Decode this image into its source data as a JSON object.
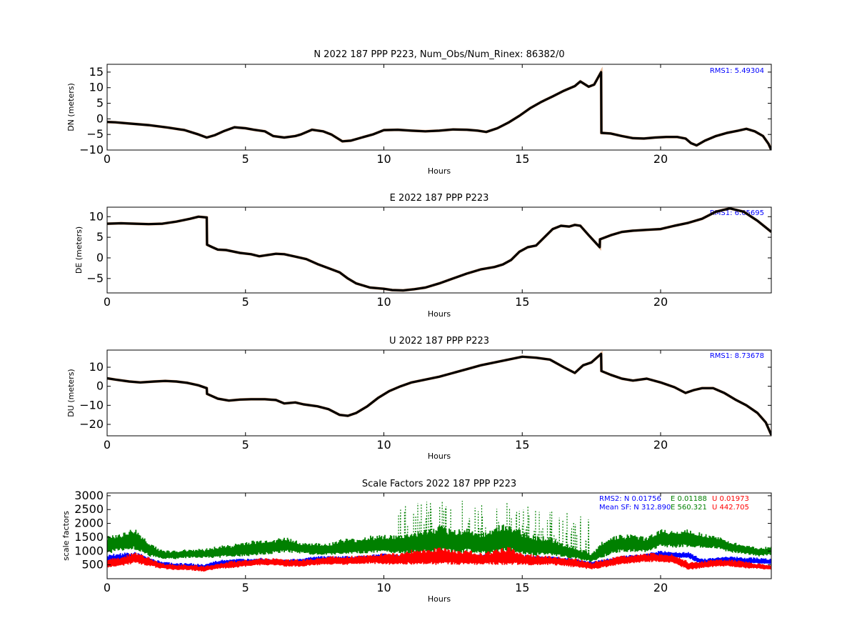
{
  "chart_data": [
    {
      "type": "line",
      "title": "N 2022 187 PPP  P223, Num_Obs/Num_Rinex: 86382/0",
      "xlabel": "Hours",
      "ylabel": "DN (meters)",
      "xlim": [
        0,
        24
      ],
      "ylim": [
        -10,
        17.5
      ],
      "xticks": [
        0,
        5,
        10,
        15,
        20
      ],
      "yticks": [
        -10,
        -5,
        0,
        5,
        10,
        15
      ],
      "annotation": "RMS1:  5.49304",
      "annotation_color": "#0000ff",
      "series": [
        {
          "color": "#000000",
          "x": [
            0,
            0.3,
            0.8,
            1.5,
            2.2,
            2.8,
            3.3,
            3.6,
            3.9,
            4.2,
            4.6,
            5.0,
            5.3,
            5.7,
            6.0,
            6.4,
            6.8,
            7.0,
            7.4,
            7.8,
            8.1,
            8.5,
            8.8,
            9.2,
            9.6,
            10.0,
            10.5,
            11.0,
            11.5,
            12.0,
            12.5,
            13.0,
            13.4,
            13.7,
            14.1,
            14.5,
            14.9,
            15.3,
            15.7,
            16.1,
            16.5,
            16.9,
            17.1,
            17.4,
            17.6,
            17.85,
            17.86,
            18.2,
            18.6,
            19.0,
            19.4,
            19.8,
            20.2,
            20.6,
            20.9,
            21.1,
            21.3,
            21.6,
            22.0,
            22.4,
            22.8,
            23.1,
            23.4,
            23.7,
            23.9,
            24.0
          ],
          "y": [
            -1.0,
            -1.1,
            -1.5,
            -2.0,
            -2.8,
            -3.6,
            -5.0,
            -6.0,
            -5.2,
            -4.0,
            -2.7,
            -3.0,
            -3.5,
            -4.0,
            -5.5,
            -6.0,
            -5.5,
            -5.0,
            -3.5,
            -4.0,
            -5.0,
            -7.2,
            -7.0,
            -6.0,
            -5.0,
            -3.6,
            -3.5,
            -3.8,
            -4.0,
            -3.8,
            -3.4,
            -3.5,
            -3.8,
            -4.2,
            -3.0,
            -1.2,
            1.0,
            3.5,
            5.5,
            7.2,
            9.0,
            10.5,
            12.0,
            10.3,
            11.0,
            15.0,
            -4.5,
            -4.7,
            -5.5,
            -6.2,
            -6.3,
            -6.0,
            -5.8,
            -5.8,
            -6.3,
            -7.8,
            -8.5,
            -7.0,
            -5.5,
            -4.5,
            -3.8,
            -3.2,
            -4.0,
            -5.5,
            -8.0,
            -10.0
          ]
        }
      ]
    },
    {
      "type": "line",
      "title": "E 2022 187 PPP  P223",
      "xlabel": "Hours",
      "ylabel": "DE (meters)",
      "xlim": [
        0,
        24
      ],
      "ylim": [
        -8.5,
        12.3
      ],
      "xticks": [
        0,
        5,
        10,
        15,
        20
      ],
      "yticks": [
        -5,
        0,
        5,
        10
      ],
      "annotation": "RMS1:  6.65695",
      "annotation_color": "#0000ff",
      "series": [
        {
          "color": "#000000",
          "x": [
            0,
            0.5,
            1.0,
            1.5,
            2.0,
            2.5,
            3.0,
            3.3,
            3.6,
            3.61,
            3.8,
            4.0,
            4.3,
            4.8,
            5.2,
            5.5,
            5.8,
            6.1,
            6.4,
            6.8,
            7.2,
            7.6,
            8.0,
            8.4,
            8.7,
            9.0,
            9.5,
            10.0,
            10.3,
            10.7,
            11.1,
            11.5,
            12.0,
            12.5,
            13.0,
            13.5,
            14.0,
            14.3,
            14.6,
            14.9,
            15.2,
            15.5,
            15.8,
            16.1,
            16.4,
            16.7,
            16.9,
            17.1,
            17.4,
            17.8,
            17.81,
            18.2,
            18.6,
            19.0,
            19.5,
            20.0,
            20.5,
            21.0,
            21.5,
            22.0,
            22.5,
            23.0,
            23.5,
            24.0
          ],
          "y": [
            8.3,
            8.4,
            8.3,
            8.2,
            8.3,
            8.8,
            9.5,
            10.0,
            9.8,
            3.2,
            2.6,
            2.0,
            1.9,
            1.2,
            0.9,
            0.4,
            0.7,
            1.0,
            0.9,
            0.3,
            -0.3,
            -1.5,
            -2.5,
            -3.5,
            -5.0,
            -6.2,
            -7.2,
            -7.5,
            -7.8,
            -7.9,
            -7.6,
            -7.2,
            -6.2,
            -5.0,
            -3.8,
            -2.8,
            -2.2,
            -1.6,
            -0.5,
            1.5,
            2.6,
            3.0,
            5.0,
            7.0,
            7.8,
            7.6,
            8.0,
            7.8,
            5.5,
            2.6,
            4.5,
            5.5,
            6.3,
            6.6,
            6.8,
            7.0,
            7.8,
            8.5,
            9.5,
            11.2,
            12.0,
            11.2,
            9.0,
            6.3
          ]
        }
      ]
    },
    {
      "type": "line",
      "title": "U 2022 187 PPP  P223",
      "xlabel": "Hours",
      "ylabel": "DU (meters)",
      "xlim": [
        0,
        24
      ],
      "ylim": [
        -26,
        19
      ],
      "xticks": [
        0,
        5,
        10,
        15,
        20
      ],
      "yticks": [
        -20,
        -10,
        0,
        10
      ],
      "annotation": "RMS1:  8.73678",
      "annotation_color": "#0000ff",
      "series": [
        {
          "color": "#000000",
          "x": [
            0,
            0.3,
            0.8,
            1.2,
            1.7,
            2.1,
            2.5,
            2.9,
            3.3,
            3.6,
            3.61,
            4.0,
            4.4,
            4.8,
            5.2,
            5.7,
            6.1,
            6.4,
            6.8,
            7.1,
            7.6,
            8.0,
            8.4,
            8.7,
            9.0,
            9.4,
            9.8,
            10.2,
            10.6,
            11.0,
            11.5,
            12.0,
            12.5,
            13.0,
            13.5,
            14.0,
            14.5,
            15.0,
            15.5,
            16.0,
            16.5,
            16.9,
            17.2,
            17.5,
            17.85,
            17.86,
            18.2,
            18.6,
            19.0,
            19.5,
            20.0,
            20.5,
            20.9,
            21.2,
            21.5,
            21.9,
            22.3,
            22.7,
            23.1,
            23.5,
            23.8,
            24.0
          ],
          "y": [
            4.2,
            3.5,
            2.5,
            2.0,
            2.5,
            2.8,
            2.5,
            1.8,
            0.5,
            -1.0,
            -4.0,
            -6.5,
            -7.5,
            -7.0,
            -6.8,
            -6.8,
            -7.2,
            -9.0,
            -8.5,
            -9.5,
            -10.5,
            -12.0,
            -15.0,
            -15.5,
            -14.0,
            -10.5,
            -6.0,
            -2.5,
            0.0,
            2.0,
            3.5,
            5.0,
            7.0,
            9.0,
            11.0,
            12.5,
            14.0,
            15.5,
            15.0,
            14.0,
            10.0,
            7.0,
            11.0,
            12.5,
            17.0,
            8.0,
            6.0,
            4.0,
            3.0,
            4.0,
            2.0,
            -0.5,
            -3.5,
            -2.0,
            -1.0,
            -1.0,
            -3.5,
            -7.0,
            -10.0,
            -14.0,
            -19.0,
            -25.5
          ]
        }
      ]
    },
    {
      "type": "scatter",
      "title": "Scale Factors 2022 187 PPP  P223",
      "xlabel": "Hours",
      "ylabel": "scale factors",
      "xlim": [
        0,
        24
      ],
      "ylim": [
        0,
        3100
      ],
      "xticks": [
        0,
        5,
        10,
        15,
        20
      ],
      "yticks": [
        500,
        1000,
        1500,
        2000,
        2500,
        3000
      ],
      "annotations": [
        {
          "text": "RMS2: N  0.01756",
          "color": "#0000ff"
        },
        {
          "text": "E  0.01188",
          "color": "#008000"
        },
        {
          "text": "U  0.01973",
          "color": "#ff0000"
        },
        {
          "text": "Mean SF: N 312.890",
          "color": "#0000ff"
        },
        {
          "text": "E  560.321",
          "color": "#008000"
        },
        {
          "text": "U  442.705",
          "color": "#ff0000"
        }
      ],
      "series": [
        {
          "color": "#008000",
          "x": [
            0,
            0.5,
            1.0,
            1.5,
            2.0,
            2.5,
            3.0,
            3.5,
            4.0,
            4.5,
            5.0,
            5.5,
            6.0,
            6.5,
            7.0,
            7.5,
            8.0,
            8.5,
            9.0,
            9.5,
            10.0,
            10.5,
            11.0,
            11.5,
            12.0,
            12.5,
            13.0,
            13.5,
            14.0,
            14.5,
            15.0,
            15.5,
            16.0,
            16.5,
            17.0,
            17.5,
            18.0,
            18.5,
            19.0,
            19.5,
            20.0,
            20.5,
            21.0,
            21.5,
            22.0,
            22.5,
            23.0,
            23.5,
            24.0
          ],
          "center": [
            1200,
            1300,
            1400,
            1050,
            850,
            850,
            900,
            900,
            950,
            1000,
            1050,
            1100,
            1150,
            1200,
            1100,
            1050,
            1050,
            1150,
            1150,
            1200,
            1250,
            1200,
            1250,
            1300,
            1400,
            1300,
            1350,
            1250,
            1350,
            1450,
            1250,
            1150,
            1150,
            1000,
            900,
            750,
            1100,
            1250,
            1250,
            1200,
            1450,
            1400,
            1450,
            1350,
            1300,
            1150,
            1050,
            950,
            1000
          ],
          "spread": [
            300,
            300,
            350,
            250,
            150,
            150,
            150,
            150,
            200,
            200,
            250,
            250,
            250,
            250,
            200,
            200,
            200,
            250,
            250,
            300,
            300,
            300,
            350,
            400,
            450,
            400,
            400,
            350,
            450,
            500,
            400,
            350,
            300,
            250,
            200,
            150,
            300,
            300,
            300,
            250,
            300,
            300,
            300,
            250,
            200,
            200,
            150,
            150,
            150
          ]
        },
        {
          "color": "#0000ff",
          "x": [
            0,
            0.5,
            1.0,
            1.5,
            2.0,
            2.5,
            3.0,
            3.5,
            4.0,
            4.5,
            5.0,
            5.5,
            6.0,
            6.5,
            7.0,
            7.5,
            8.0,
            8.5,
            9.0,
            9.5,
            10.0,
            10.5,
            11.0,
            11.5,
            12.0,
            12.5,
            13.0,
            13.5,
            14.0,
            14.5,
            15.0,
            15.5,
            16.0,
            16.5,
            17.0,
            17.5,
            18.0,
            18.5,
            19.0,
            19.5,
            20.0,
            20.5,
            21.0,
            21.5,
            22.0,
            22.5,
            23.0,
            23.5,
            24.0
          ],
          "center": [
            700,
            750,
            800,
            650,
            500,
            450,
            450,
            400,
            550,
            600,
            600,
            650,
            600,
            600,
            600,
            700,
            700,
            700,
            700,
            750,
            800,
            750,
            800,
            800,
            800,
            800,
            750,
            750,
            800,
            850,
            750,
            700,
            700,
            650,
            600,
            500,
            600,
            700,
            750,
            800,
            900,
            850,
            850,
            600,
            650,
            700,
            650,
            650,
            600
          ],
          "spread": [
            150,
            150,
            150,
            120,
            100,
            100,
            100,
            100,
            100,
            100,
            100,
            100,
            100,
            100,
            100,
            100,
            100,
            100,
            100,
            100,
            100,
            100,
            100,
            100,
            100,
            100,
            100,
            100,
            100,
            100,
            100,
            100,
            100,
            100,
            100,
            100,
            100,
            100,
            100,
            100,
            100,
            100,
            100,
            100,
            100,
            100,
            100,
            100,
            100
          ]
        },
        {
          "color": "#ff0000",
          "x": [
            0,
            0.5,
            1.0,
            1.5,
            2.0,
            2.5,
            3.0,
            3.5,
            4.0,
            4.5,
            5.0,
            5.5,
            6.0,
            6.5,
            7.0,
            7.5,
            8.0,
            8.5,
            9.0,
            9.5,
            10.0,
            10.5,
            11.0,
            11.5,
            12.0,
            12.5,
            13.0,
            13.5,
            14.0,
            14.5,
            15.0,
            15.5,
            16.0,
            16.5,
            17.0,
            17.5,
            18.0,
            18.5,
            19.0,
            19.5,
            20.0,
            20.5,
            21.0,
            21.5,
            22.0,
            22.5,
            23.0,
            23.5,
            24.0
          ],
          "center": [
            550,
            600,
            750,
            600,
            450,
            400,
            400,
            350,
            450,
            500,
            550,
            600,
            600,
            550,
            550,
            600,
            650,
            650,
            650,
            700,
            700,
            700,
            750,
            750,
            800,
            750,
            750,
            700,
            750,
            800,
            700,
            650,
            650,
            600,
            550,
            450,
            550,
            650,
            700,
            750,
            750,
            700,
            450,
            500,
            550,
            550,
            500,
            450,
            400
          ],
          "spread": [
            150,
            150,
            200,
            150,
            100,
            100,
            100,
            100,
            100,
            120,
            120,
            120,
            120,
            120,
            120,
            120,
            150,
            150,
            150,
            150,
            200,
            200,
            250,
            250,
            300,
            250,
            250,
            200,
            250,
            300,
            200,
            180,
            150,
            150,
            150,
            120,
            150,
            150,
            150,
            150,
            150,
            150,
            150,
            120,
            120,
            120,
            120,
            100,
            100
          ]
        }
      ]
    }
  ]
}
